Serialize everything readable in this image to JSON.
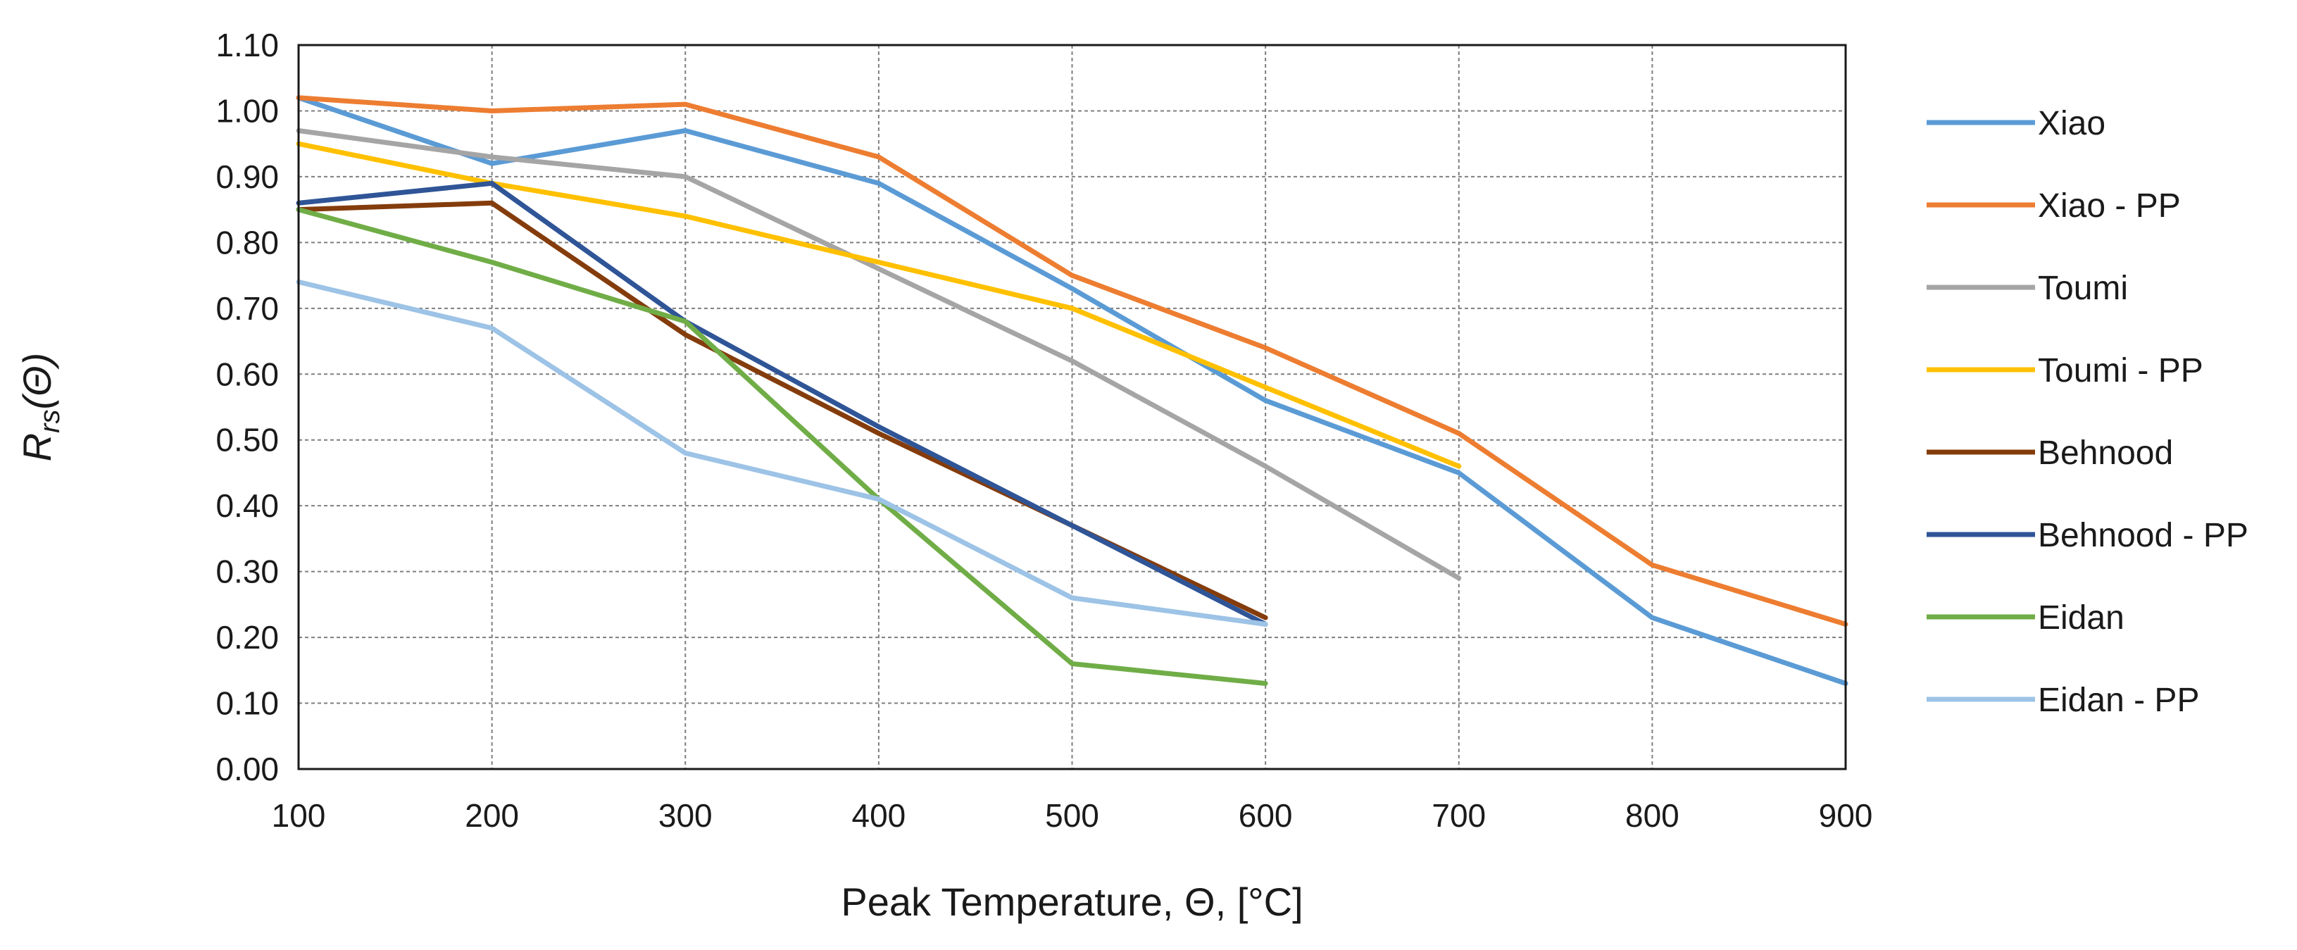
{
  "chart_data": {
    "type": "line",
    "title": "",
    "xlabel": "Peak Temperature, Θ, [°C]",
    "ylabel": "Rrs(Θ)",
    "ylabel_main": "R",
    "ylabel_sub": "rs",
    "ylabel_arg": "(Θ)",
    "xlim": [
      100,
      900
    ],
    "ylim": [
      0,
      1.1
    ],
    "x_ticks": [
      100,
      200,
      300,
      400,
      500,
      600,
      700,
      800,
      900
    ],
    "y_ticks": [
      "0.00",
      "0.10",
      "0.20",
      "0.30",
      "0.40",
      "0.50",
      "0.60",
      "0.70",
      "0.80",
      "0.90",
      "1.00",
      "1.10"
    ],
    "grid": true,
    "legend_position": "right",
    "series": [
      {
        "name": "Xiao",
        "color": "#5b9bd5",
        "x": [
          100,
          200,
          300,
          400,
          500,
          600,
          700,
          800,
          900
        ],
        "y": [
          1.02,
          0.92,
          0.97,
          0.89,
          0.73,
          0.56,
          0.45,
          0.23,
          0.13
        ]
      },
      {
        "name": "Xiao - PP",
        "color": "#ed7d31",
        "x": [
          100,
          200,
          300,
          400,
          500,
          600,
          700,
          800,
          900
        ],
        "y": [
          1.02,
          1.0,
          1.01,
          0.93,
          0.75,
          0.64,
          0.51,
          0.31,
          0.22
        ]
      },
      {
        "name": "Toumi",
        "color": "#a5a5a5",
        "x": [
          100,
          200,
          300,
          400,
          500,
          600,
          700
        ],
        "y": [
          0.97,
          0.93,
          0.9,
          0.76,
          0.62,
          0.46,
          0.29
        ]
      },
      {
        "name": "Toumi - PP",
        "color": "#ffc000",
        "x": [
          100,
          200,
          300,
          400,
          500,
          600,
          700
        ],
        "y": [
          0.95,
          0.89,
          0.84,
          0.77,
          0.7,
          0.58,
          0.46
        ]
      },
      {
        "name": "Behnood",
        "color": "#843c0c",
        "x": [
          100,
          200,
          300,
          400,
          500,
          600
        ],
        "y": [
          0.85,
          0.86,
          0.66,
          0.51,
          0.37,
          0.23
        ]
      },
      {
        "name": "Behnood - PP",
        "color": "#2f5597",
        "x": [
          100,
          200,
          300,
          400,
          500,
          600
        ],
        "y": [
          0.86,
          0.89,
          0.68,
          0.52,
          0.37,
          0.22
        ]
      },
      {
        "name": "Eidan",
        "color": "#70ad47",
        "x": [
          100,
          200,
          300,
          400,
          500,
          600
        ],
        "y": [
          0.85,
          0.77,
          0.68,
          0.41,
          0.16,
          0.13
        ]
      },
      {
        "name": "Eidan - PP",
        "color": "#9dc3e6",
        "x": [
          100,
          200,
          300,
          400,
          500,
          600
        ],
        "y": [
          0.74,
          0.67,
          0.48,
          0.41,
          0.26,
          0.22
        ]
      }
    ]
  }
}
